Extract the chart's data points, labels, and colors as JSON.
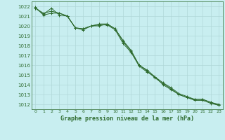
{
  "title": "Graphe pression niveau de la mer (hPa)",
  "background_color": "#c8eef0",
  "plot_bg_color": "#c8eef0",
  "grid_color": "#b0d8d8",
  "line_color": "#2d6a2d",
  "ylim": [
    1011.5,
    1022.5
  ],
  "xlim": [
    -0.5,
    23.5
  ],
  "ytick_labels": [
    "1012",
    "1013",
    "1014",
    "1015",
    "1016",
    "1017",
    "1018",
    "1019",
    "1020",
    "1021",
    "1022"
  ],
  "ytick_vals": [
    1012,
    1013,
    1014,
    1015,
    1016,
    1017,
    1018,
    1019,
    1020,
    1021,
    1022
  ],
  "xtick_vals": [
    0,
    1,
    2,
    3,
    4,
    5,
    6,
    7,
    8,
    9,
    10,
    11,
    12,
    13,
    14,
    15,
    16,
    17,
    18,
    19,
    20,
    21,
    22,
    23
  ],
  "xtick_labels": [
    "0",
    "1",
    "2",
    "3",
    "4",
    "5",
    "6",
    "7",
    "8",
    "9",
    "10",
    "11",
    "12",
    "13",
    "14",
    "15",
    "16",
    "17",
    "18",
    "19",
    "20",
    "21",
    "22",
    "23"
  ],
  "series": [
    [
      1021.8,
      1021.3,
      1021.5,
      1021.3,
      1021.0,
      1019.8,
      1019.7,
      1020.0,
      1020.2,
      1020.2,
      1019.7,
      1018.5,
      1017.5,
      1016.0,
      1015.5,
      1014.8,
      1014.2,
      1013.7,
      1013.1,
      1012.8,
      1012.5,
      1012.5,
      1012.2,
      1012.0
    ],
    [
      1021.8,
      1021.2,
      1021.8,
      1021.1,
      1021.0,
      1019.8,
      1019.6,
      1020.0,
      1020.1,
      1020.1,
      1019.6,
      1018.2,
      1017.3,
      1015.9,
      1015.3,
      1014.8,
      1014.0,
      1013.5,
      1013.0,
      1012.7,
      1012.4,
      1012.4,
      1012.1,
      1011.9
    ],
    [
      1021.9,
      1021.1,
      1021.3,
      1021.3,
      1021.0,
      1019.8,
      1019.7,
      1020.0,
      1020.0,
      1020.2,
      1019.7,
      1018.4,
      1017.4,
      1016.0,
      1015.4,
      1014.7,
      1014.1,
      1013.6,
      1013.0,
      1012.7,
      1012.5,
      1012.5,
      1012.2,
      1011.9
    ]
  ],
  "figsize": [
    3.2,
    2.0
  ],
  "dpi": 100
}
